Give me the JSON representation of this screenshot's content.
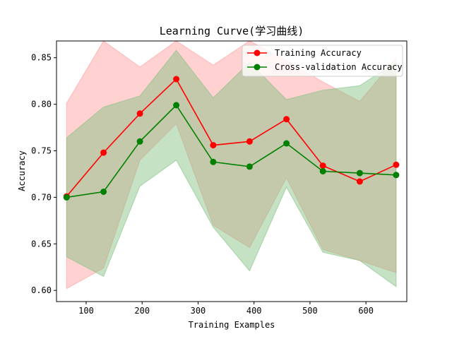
{
  "chart_data": {
    "type": "line",
    "title": "Learning Curve(学习曲线)",
    "xlabel": "Training Examples",
    "ylabel": "Accuracy",
    "xlim": [
      47,
      673
    ],
    "ylim": [
      0.588,
      0.868
    ],
    "xticks": [
      100,
      200,
      300,
      400,
      500,
      600
    ],
    "yticks": [
      0.6,
      0.65,
      0.7,
      0.75,
      0.8,
      0.85
    ],
    "legend_position": "top-right",
    "x": [
      65,
      131,
      196,
      261,
      327,
      392,
      458,
      523,
      589,
      654
    ],
    "series": [
      {
        "name": "Training Accuracy",
        "color": "#ff0000",
        "band_color": "#ff9999",
        "values": [
          0.701,
          0.748,
          0.79,
          0.827,
          0.756,
          0.76,
          0.784,
          0.734,
          0.717,
          0.735
        ],
        "upper": [
          0.801,
          0.872,
          0.84,
          0.875,
          0.842,
          0.875,
          0.847,
          0.824,
          0.803,
          0.85
        ],
        "lower": [
          0.602,
          0.624,
          0.74,
          0.779,
          0.67,
          0.646,
          0.721,
          0.644,
          0.632,
          0.619
        ]
      },
      {
        "name": "Cross-validation Accuracy",
        "color": "#008000",
        "band_color": "#7fbf7f",
        "values": [
          0.7,
          0.706,
          0.76,
          0.799,
          0.738,
          0.733,
          0.758,
          0.728,
          0.726,
          0.724
        ],
        "upper": [
          0.764,
          0.797,
          0.809,
          0.858,
          0.807,
          0.845,
          0.805,
          0.815,
          0.82,
          0.845
        ],
        "lower": [
          0.636,
          0.615,
          0.712,
          0.74,
          0.668,
          0.621,
          0.711,
          0.641,
          0.632,
          0.604
        ]
      }
    ]
  }
}
